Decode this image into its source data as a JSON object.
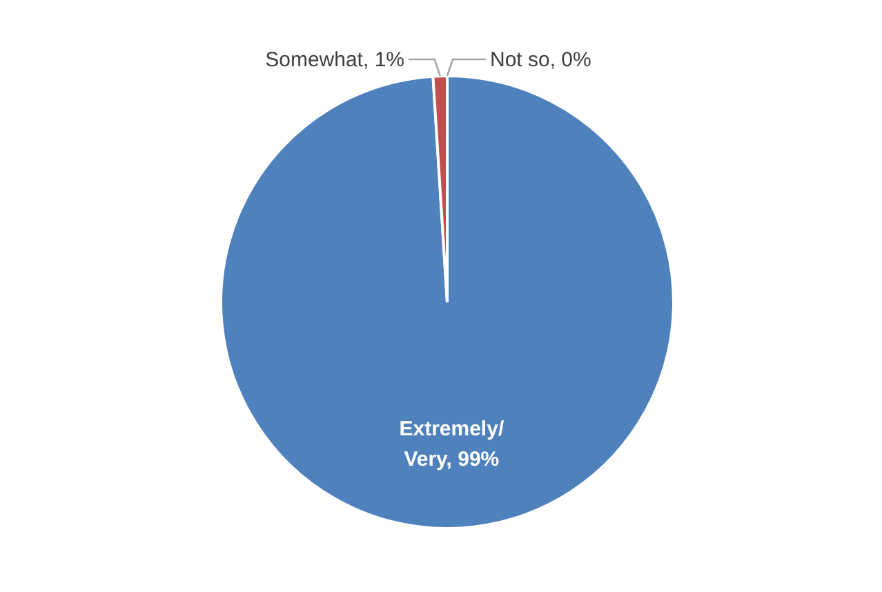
{
  "chart_data": {
    "type": "pie",
    "categories": [
      "Extremely/ Very",
      "Somewhat",
      "Not so"
    ],
    "values": [
      99,
      1,
      0
    ],
    "value_labels": [
      "99%",
      "1%",
      "0%"
    ],
    "colors": [
      "#4f81bd",
      "#c0504d",
      "#9bbb59"
    ]
  }
}
